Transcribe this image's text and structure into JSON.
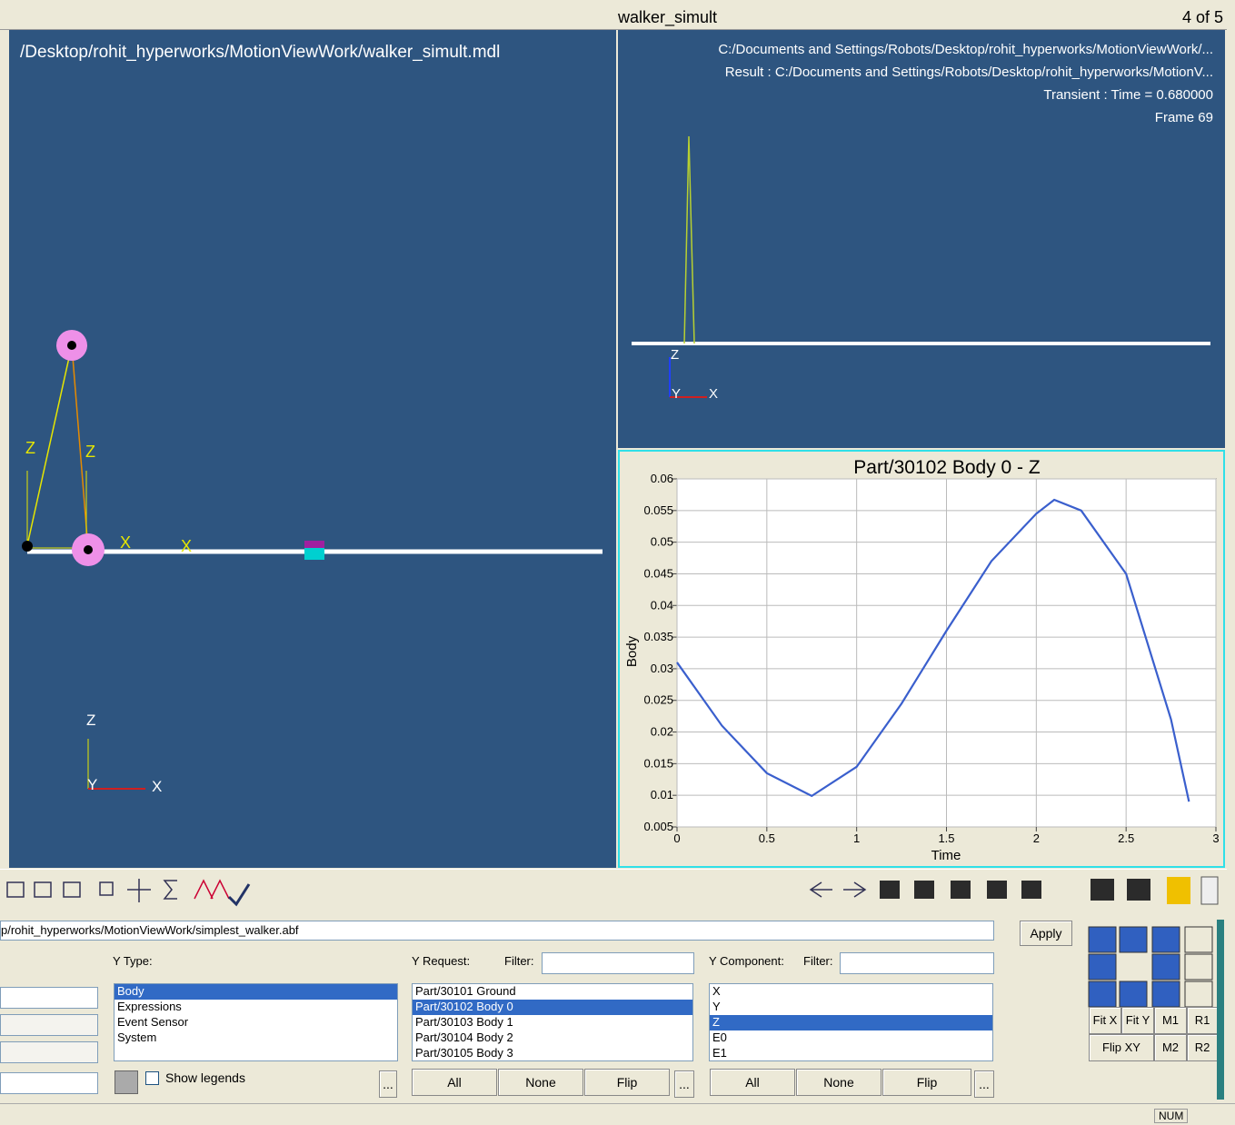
{
  "window": {
    "title": "walker_simult",
    "page": "4 of 5"
  },
  "left_view": {
    "path": "/Desktop/rohit_hyperworks/MotionViewWork/walker_simult.mdl",
    "labels": [
      "Z",
      "Z",
      "X",
      "X",
      "Z",
      "Y",
      "X"
    ]
  },
  "right_view": {
    "lines": [
      "C:/Documents and Settings/Robots/Desktop/rohit_hyperworks/MotionViewWork/...",
      "Result : C:/Documents and Settings/Robots/Desktop/rohit_hyperworks/MotionV...",
      "Transient : Time = 0.680000",
      "Frame 69"
    ],
    "labels": [
      "Z",
      "Y",
      "X"
    ]
  },
  "chart_data": {
    "type": "line",
    "title": "Part/30102 Body 0 - Z",
    "x_label": "Time",
    "y_label": "Body",
    "x": [
      0,
      0.25,
      0.5,
      0.75,
      1.0,
      1.25,
      1.5,
      1.75,
      2.0,
      2.1,
      2.25,
      2.5,
      2.75,
      2.85
    ],
    "series": [
      {
        "name": "Body",
        "color": "#3a5fcd",
        "values": [
          0.031,
          0.021,
          0.0135,
          0.0099,
          0.0145,
          0.0245,
          0.036,
          0.047,
          0.0545,
          0.0567,
          0.055,
          0.045,
          0.022,
          0.009
        ]
      }
    ],
    "xlim": [
      0,
      3
    ],
    "ylim": [
      0.005,
      0.06
    ],
    "xticks": [
      0,
      0.5,
      1,
      1.5,
      2,
      2.5,
      3
    ],
    "yticks": [
      0.005,
      0.01,
      0.015,
      0.02,
      0.025,
      0.03,
      0.035,
      0.04,
      0.045,
      0.05,
      0.055,
      0.06
    ],
    "grid": true
  },
  "panel": {
    "file": "p/rohit_hyperworks/MotionViewWork/simplest_walker.abf",
    "apply": "Apply",
    "y_type_label": "Y Type:",
    "y_types": [
      "Body",
      "Expressions",
      "Event Sensor",
      "System"
    ],
    "y_type_selected": 0,
    "y_request_label": "Y Request:",
    "filter_label": "Filter:",
    "y_requests": [
      "Part/30101 Ground",
      "Part/30102 Body 0",
      "Part/30103 Body 1",
      "Part/30104 Body 2",
      "Part/30105 Body 3"
    ],
    "y_request_selected": 1,
    "y_component_label": "Y Component:",
    "y_components": [
      "X",
      "Y",
      "Z",
      "E0",
      "E1"
    ],
    "y_component_selected": 2,
    "show_legends": "Show legends",
    "more": "...",
    "all": "All",
    "none": "None",
    "flip": "Flip",
    "view_buttons": [
      "Fit X",
      "Fit Y",
      "M1",
      "R1",
      "Flip XY",
      "M2",
      "R2"
    ]
  },
  "status": {
    "num": "NUM"
  }
}
